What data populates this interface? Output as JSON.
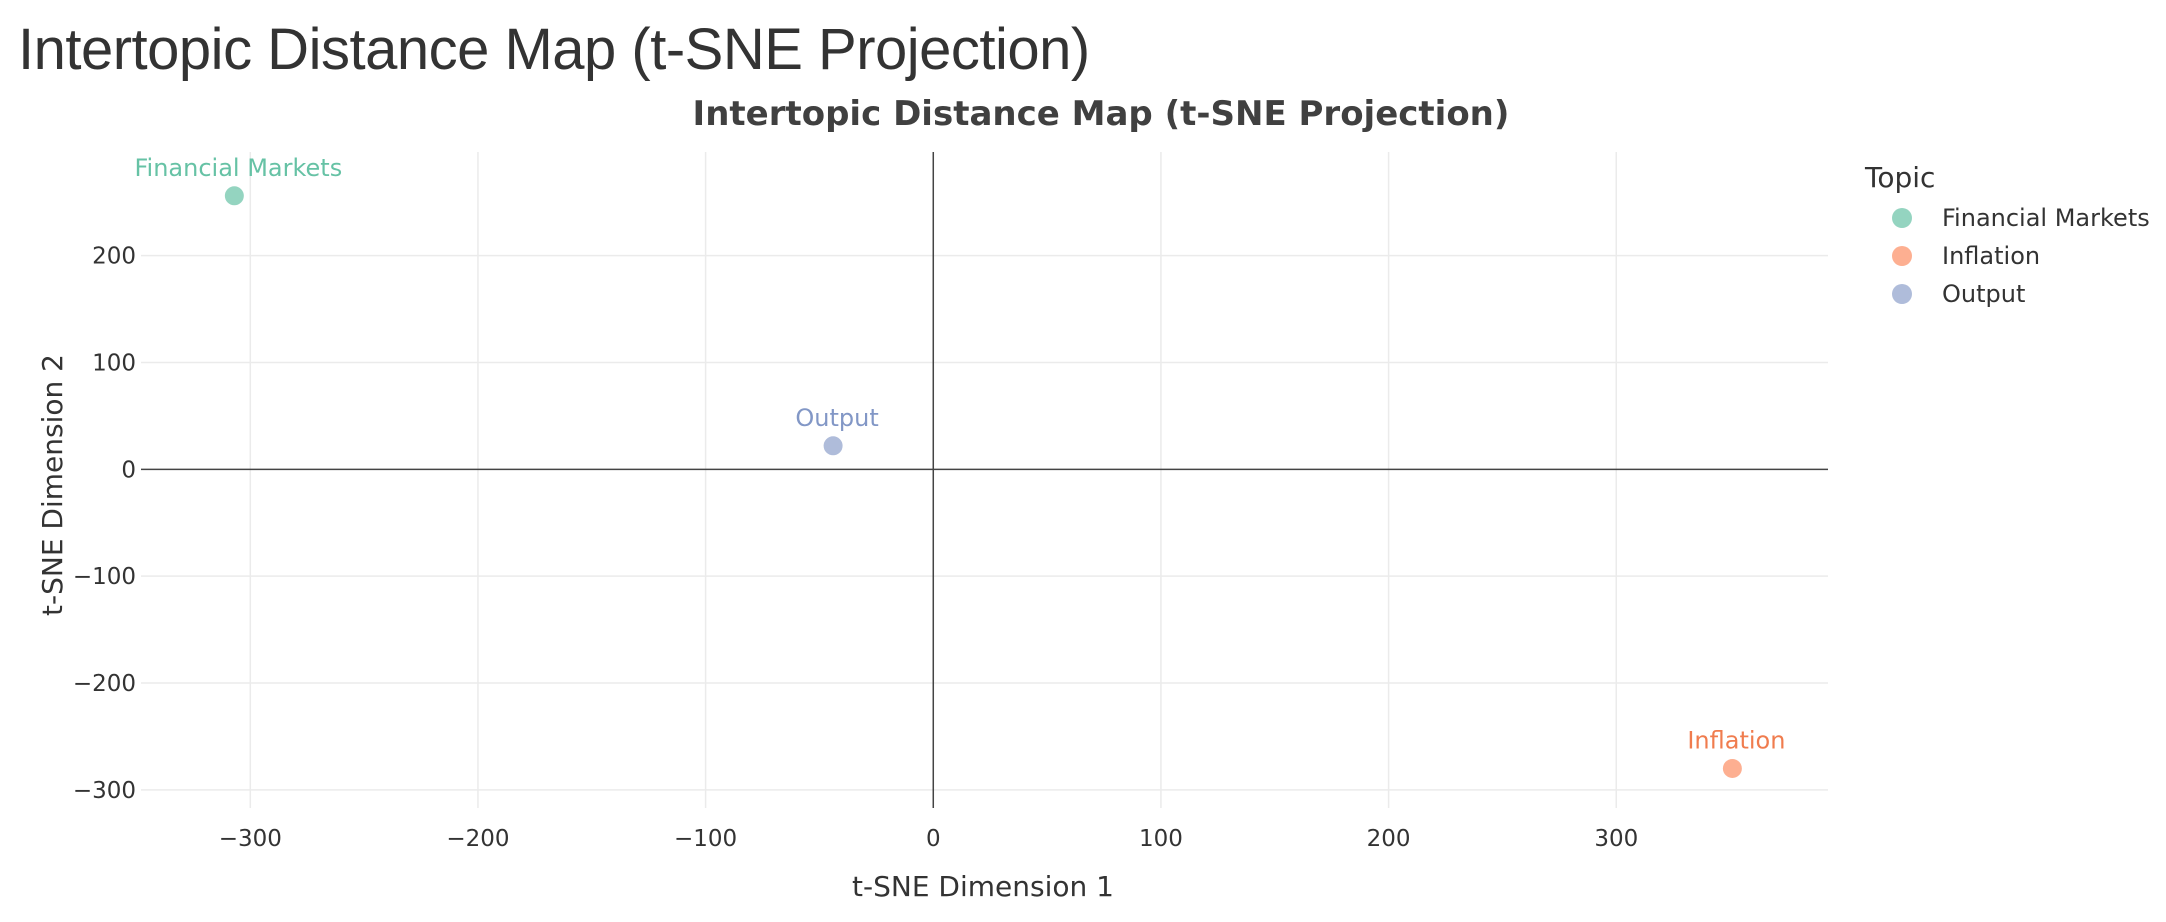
{
  "page": {
    "title": "Intertopic Distance Map (t-SNE Projection)"
  },
  "chart_data": {
    "type": "scatter",
    "title": "Intertopic Distance Map (t-SNE Projection)",
    "xlabel": "t-SNE Dimension 1",
    "ylabel": "t-SNE Dimension 2",
    "xlim": [
      -348,
      393
    ],
    "ylim": [
      -317,
      297
    ],
    "x_ticks": [
      -300,
      -200,
      -100,
      0,
      100,
      200,
      300
    ],
    "y_ticks": [
      -300,
      -200,
      -100,
      0,
      100,
      200
    ],
    "x_tick_labels": [
      "−300",
      "−200",
      "−100",
      "0",
      "100",
      "200",
      "300"
    ],
    "y_tick_labels": [
      "−300",
      "−200",
      "−100",
      "0",
      "100",
      "200"
    ],
    "grid": true,
    "zero_lines": true,
    "legend": {
      "title": "Topic",
      "placement": "top-right, outside plot"
    },
    "series": [
      {
        "name": "Financial Markets",
        "color": "#66c2a5",
        "label_color": "#66c2a5",
        "points": [
          {
            "x": -307,
            "y": 256,
            "label": "Financial Markets"
          }
        ]
      },
      {
        "name": "Inflation",
        "color": "#fc8d62",
        "label_color": "#f07c4e",
        "points": [
          {
            "x": 351,
            "y": -280,
            "label": "Inflation"
          }
        ]
      },
      {
        "name": "Output",
        "color": "#8da0cb",
        "label_color": "#8297c6",
        "points": [
          {
            "x": -44,
            "y": 22,
            "label": "Output"
          }
        ]
      }
    ],
    "marker_opacity": 0.7
  }
}
